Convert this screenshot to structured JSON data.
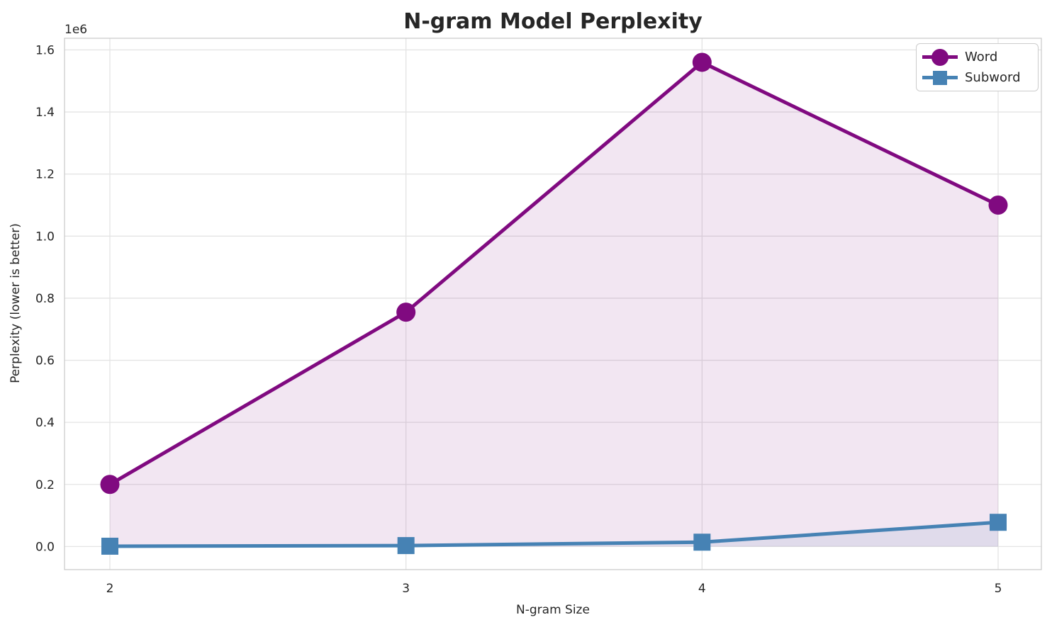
{
  "chart_data": {
    "type": "line",
    "title": "N-gram Model Perplexity",
    "xlabel": "N-gram Size",
    "ylabel": "Perplexity (lower is better)",
    "y_offset_label": "1e6",
    "x": [
      2,
      3,
      4,
      5
    ],
    "xtick_labels": [
      "2",
      "3",
      "4",
      "5"
    ],
    "ytick_values": [
      0,
      200000,
      400000,
      600000,
      800000,
      1000000,
      1200000,
      1400000,
      1600000
    ],
    "ytick_labels": [
      "0.0",
      "0.2",
      "0.4",
      "0.6",
      "0.8",
      "1.0",
      "1.2",
      "1.4",
      "1.6"
    ],
    "ylim": [
      -75000,
      1640000
    ],
    "grid": true,
    "legend_position": "upper right",
    "series": [
      {
        "name": "Word",
        "color": "#800a80",
        "marker": "circle",
        "fill_alpha": 0.1,
        "values": [
          200000,
          755000,
          1560000,
          1100000
        ]
      },
      {
        "name": "Subword",
        "color": "#4682b4",
        "marker": "square",
        "fill_alpha": 0.1,
        "values": [
          1000,
          3000,
          14000,
          78000
        ]
      }
    ],
    "colors": {
      "background": "#ffffff",
      "grid": "#e4e4e4",
      "spine": "#cccccc",
      "text": "#262626"
    }
  }
}
